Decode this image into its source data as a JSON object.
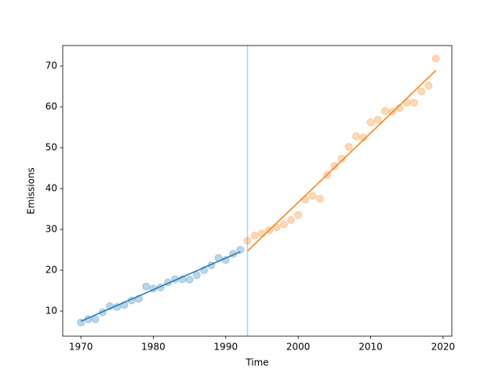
{
  "chart_data": {
    "type": "scatter",
    "xlabel": "Time",
    "ylabel": "Emissions",
    "xlim": [
      1967.5,
      2021.2
    ],
    "ylim": [
      3.85,
      75.0
    ],
    "xticks": [
      1970,
      1980,
      1990,
      2000,
      2010,
      2020
    ],
    "yticks": [
      10,
      20,
      30,
      40,
      50,
      60,
      70
    ],
    "vlines": [
      {
        "x": 1993,
        "color": "#1f77b4",
        "alpha": 0.35
      }
    ],
    "series": [
      {
        "type": "scatter",
        "color": "#1f77b4",
        "alpha": 0.3,
        "x": [
          1970,
          1971,
          1972,
          1973,
          1974,
          1975,
          1976,
          1977,
          1978,
          1979,
          1980,
          1981,
          1982,
          1983,
          1984,
          1985,
          1986,
          1987,
          1988,
          1989,
          1990,
          1991,
          1992
        ],
        "values": [
          7.2,
          8.0,
          8.0,
          9.7,
          11.2,
          11.0,
          11.5,
          12.6,
          13.0,
          16.0,
          15.5,
          15.8,
          17.0,
          17.8,
          17.8,
          17.7,
          18.8,
          20.0,
          21.2,
          23.0,
          22.5,
          24.0,
          25.0
        ]
      },
      {
        "type": "scatter",
        "color": "#ff7f0e",
        "alpha": 0.3,
        "x": [
          1993,
          1994,
          1995,
          1996,
          1997,
          1998,
          1999,
          2000,
          2001,
          2002,
          2003,
          2004,
          2005,
          2006,
          2007,
          2008,
          2009,
          2010,
          2011,
          2012,
          2013,
          2014,
          2015,
          2016,
          2017,
          2018,
          2019
        ],
        "values": [
          27.2,
          28.5,
          29.0,
          29.8,
          30.5,
          31.2,
          32.3,
          33.5,
          37.3,
          38.2,
          37.5,
          43.3,
          45.5,
          47.3,
          50.2,
          52.8,
          52.5,
          56.2,
          56.8,
          59.0,
          58.8,
          59.7,
          61.0,
          61.0,
          63.8,
          65.2,
          71.8
        ]
      },
      {
        "type": "line",
        "color": "#1f77b4",
        "x": [
          1970,
          1992
        ],
        "values": [
          7.5,
          24.5
        ]
      },
      {
        "type": "line",
        "color": "#ff7f0e",
        "x": [
          1993,
          2019
        ],
        "values": [
          24.7,
          68.9
        ]
      }
    ]
  }
}
